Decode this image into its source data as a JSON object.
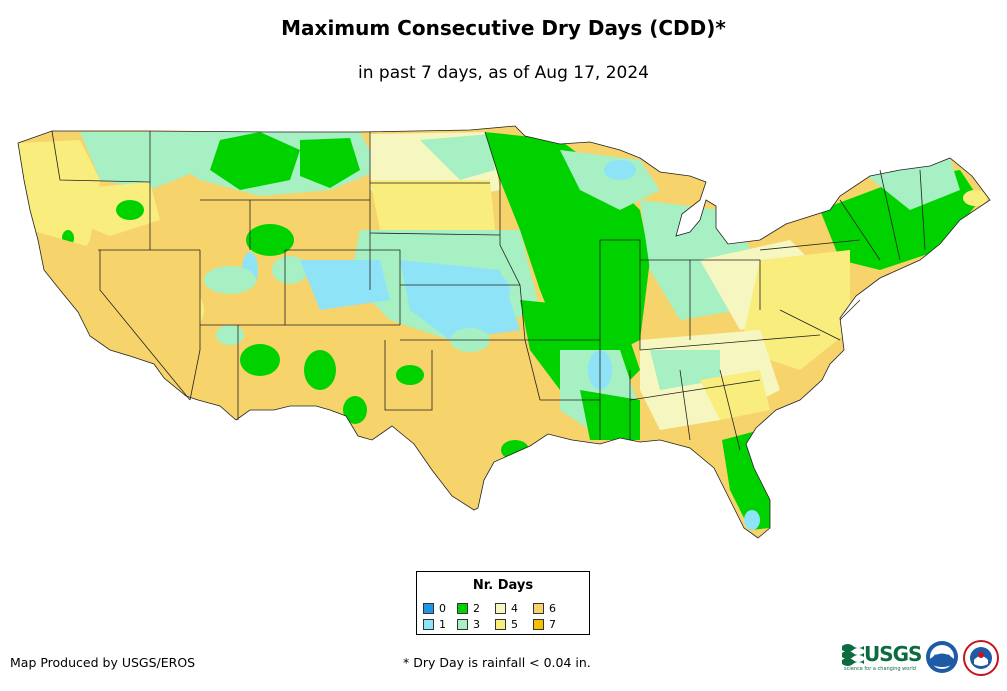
{
  "title": "Maximum Consecutive Dry Days (CDD)*",
  "subtitle": "in past 7 days, as of Aug 17, 2024",
  "legend": {
    "title": "Nr. Days",
    "items": [
      {
        "label": "0",
        "color": "#1f96e6"
      },
      {
        "label": "1",
        "color": "#8fe3f7"
      },
      {
        "label": "2",
        "color": "#00d200"
      },
      {
        "label": "3",
        "color": "#a6f0c3"
      },
      {
        "label": "4",
        "color": "#f6f7c0"
      },
      {
        "label": "5",
        "color": "#f9ed7e"
      },
      {
        "label": "6",
        "color": "#f6d36b"
      },
      {
        "label": "7",
        "color": "#f5c000"
      }
    ]
  },
  "footer": {
    "credit": "Map Produced by USGS/EROS",
    "note": "* Dry Day is rainfall < 0.04 in."
  },
  "logos": {
    "usgs": "USGS",
    "usgs_tagline": "science for a changing world",
    "noaa": "noaa"
  }
}
